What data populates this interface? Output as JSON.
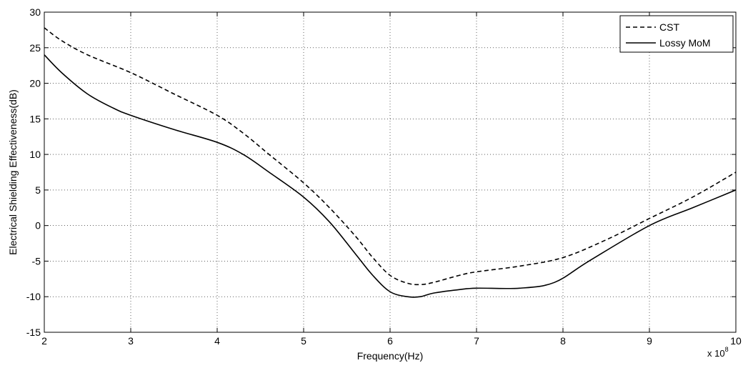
{
  "chart_data": {
    "type": "line",
    "xlabel": "Frequency(Hz)",
    "ylabel": "Electrical Shielding Effectiveness(dB)",
    "x_multiplier": "x 10",
    "x_multiplier_exponent": "8",
    "xlim": [
      2,
      10
    ],
    "ylim": [
      -15,
      30
    ],
    "xticks": [
      2,
      3,
      4,
      5,
      6,
      7,
      8,
      9,
      10
    ],
    "yticks": [
      -15,
      -10,
      -5,
      0,
      5,
      10,
      15,
      20,
      25,
      30
    ],
    "grid": true,
    "legend_position": "top-right",
    "series": [
      {
        "name": "CST",
        "style": "dashed",
        "color": "#000000",
        "x": [
          2.0,
          2.2,
          2.5,
          3.0,
          3.5,
          4.0,
          4.3,
          4.6,
          5.0,
          5.3,
          5.6,
          5.8,
          6.0,
          6.2,
          6.35,
          6.5,
          6.8,
          7.0,
          7.5,
          8.0,
          8.5,
          9.0,
          9.5,
          10.0
        ],
        "y": [
          27.8,
          26.0,
          24.0,
          21.5,
          18.5,
          15.5,
          13.0,
          10.0,
          6.0,
          2.5,
          -1.5,
          -4.5,
          -7.0,
          -8.1,
          -8.3,
          -8.0,
          -7.0,
          -6.5,
          -5.7,
          -4.5,
          -2.0,
          1.0,
          4.0,
          7.5
        ]
      },
      {
        "name": "Lossy MoM",
        "style": "solid",
        "color": "#000000",
        "x": [
          2.0,
          2.2,
          2.5,
          2.8,
          3.0,
          3.5,
          4.0,
          4.3,
          4.6,
          5.0,
          5.3,
          5.6,
          5.8,
          6.0,
          6.2,
          6.35,
          6.5,
          6.8,
          7.0,
          7.5,
          7.9,
          8.3,
          9.0,
          9.5,
          10.0
        ],
        "y": [
          24.0,
          21.5,
          18.5,
          16.5,
          15.5,
          13.5,
          11.7,
          10.0,
          7.5,
          4.0,
          0.5,
          -4.0,
          -7.0,
          -9.3,
          -10.0,
          -10.0,
          -9.5,
          -9.0,
          -8.8,
          -8.8,
          -8.0,
          -5.0,
          0.0,
          2.5,
          5.0
        ]
      }
    ]
  }
}
